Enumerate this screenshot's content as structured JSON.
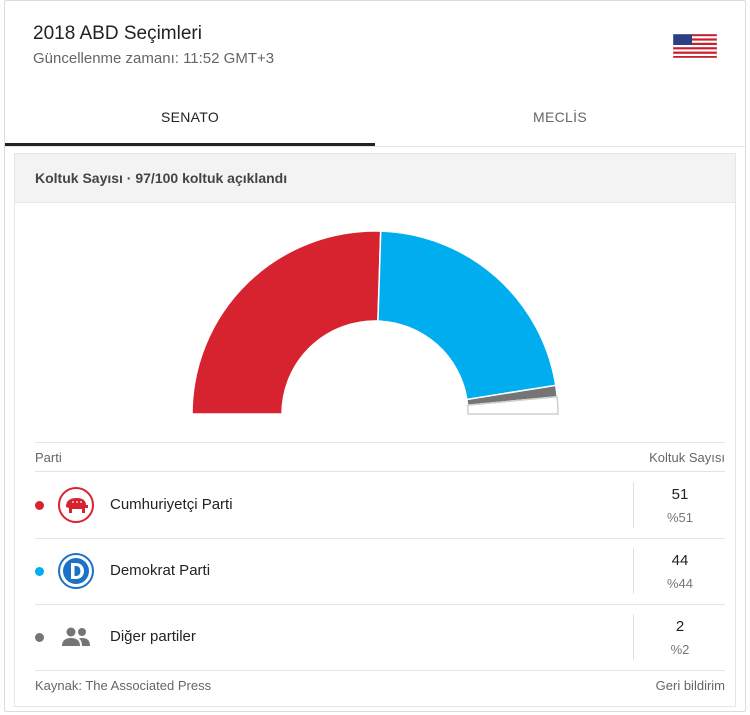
{
  "header": {
    "title": "2018 ABD Seçimleri",
    "updated": "Güncellenme zamanı: 11:52 GMT+3",
    "flag_icon": "us-flag-icon"
  },
  "tabs": [
    {
      "label": "SENATO",
      "active": true
    },
    {
      "label": "MECLİS",
      "active": false
    }
  ],
  "panel": {
    "heading": "Koltuk Sayısı · 97/100 koltuk açıklandı"
  },
  "table": {
    "col_party": "Parti",
    "col_seats": "Koltuk Sayısı",
    "rows": [
      {
        "name": "Cumhuriyetçi Parti",
        "seats": "51",
        "pct": "%51",
        "color": "#d7232f",
        "icon": "republican-elephant-icon"
      },
      {
        "name": "Demokrat Parti",
        "seats": "44",
        "pct": "%44",
        "color": "#00aeef",
        "icon": "democrat-d-icon"
      },
      {
        "name": "Diğer partiler",
        "seats": "2",
        "pct": "%2",
        "color": "#757575",
        "icon": "people-icon"
      }
    ]
  },
  "chart_data": {
    "type": "pie",
    "total_seats": 100,
    "reported_seats": 97,
    "segments": [
      {
        "name": "Cumhuriyetçi Parti",
        "value": 51,
        "color": "#d7232f"
      },
      {
        "name": "Demokrat Parti",
        "value": 44,
        "color": "#00aeef"
      },
      {
        "name": "Diğer partiler",
        "value": 2,
        "color": "#757575"
      },
      {
        "name": "",
        "value": 3,
        "color": "#ffffff"
      }
    ]
  },
  "footer": {
    "source": "Kaynak: The Associated Press",
    "feedback": "Geri bildirim"
  }
}
